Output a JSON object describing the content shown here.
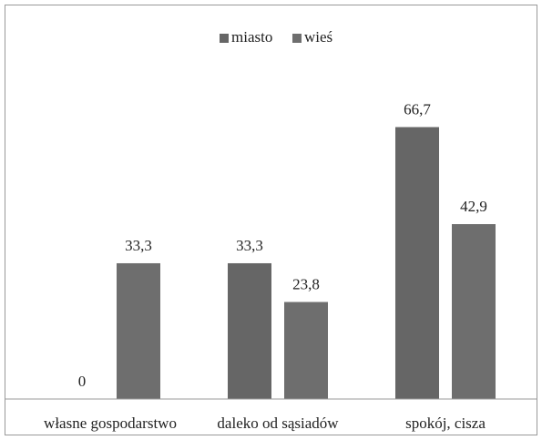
{
  "chart_data": {
    "type": "bar",
    "categories": [
      "własne gospodarstwo",
      "daleko od sąsiadów",
      "spokój, cisza"
    ],
    "series": [
      {
        "name": "miasto",
        "color": "#666666",
        "values": [
          0,
          33.3,
          66.7
        ],
        "value_labels": [
          "0",
          "33,3",
          "66,7"
        ]
      },
      {
        "name": "wieś",
        "color": "#6e6e6e",
        "values": [
          33.3,
          23.8,
          42.9
        ],
        "value_labels": [
          "33,3",
          "23,8",
          "42,9"
        ]
      }
    ],
    "ylim": [
      0,
      80
    ],
    "legend": "top"
  }
}
